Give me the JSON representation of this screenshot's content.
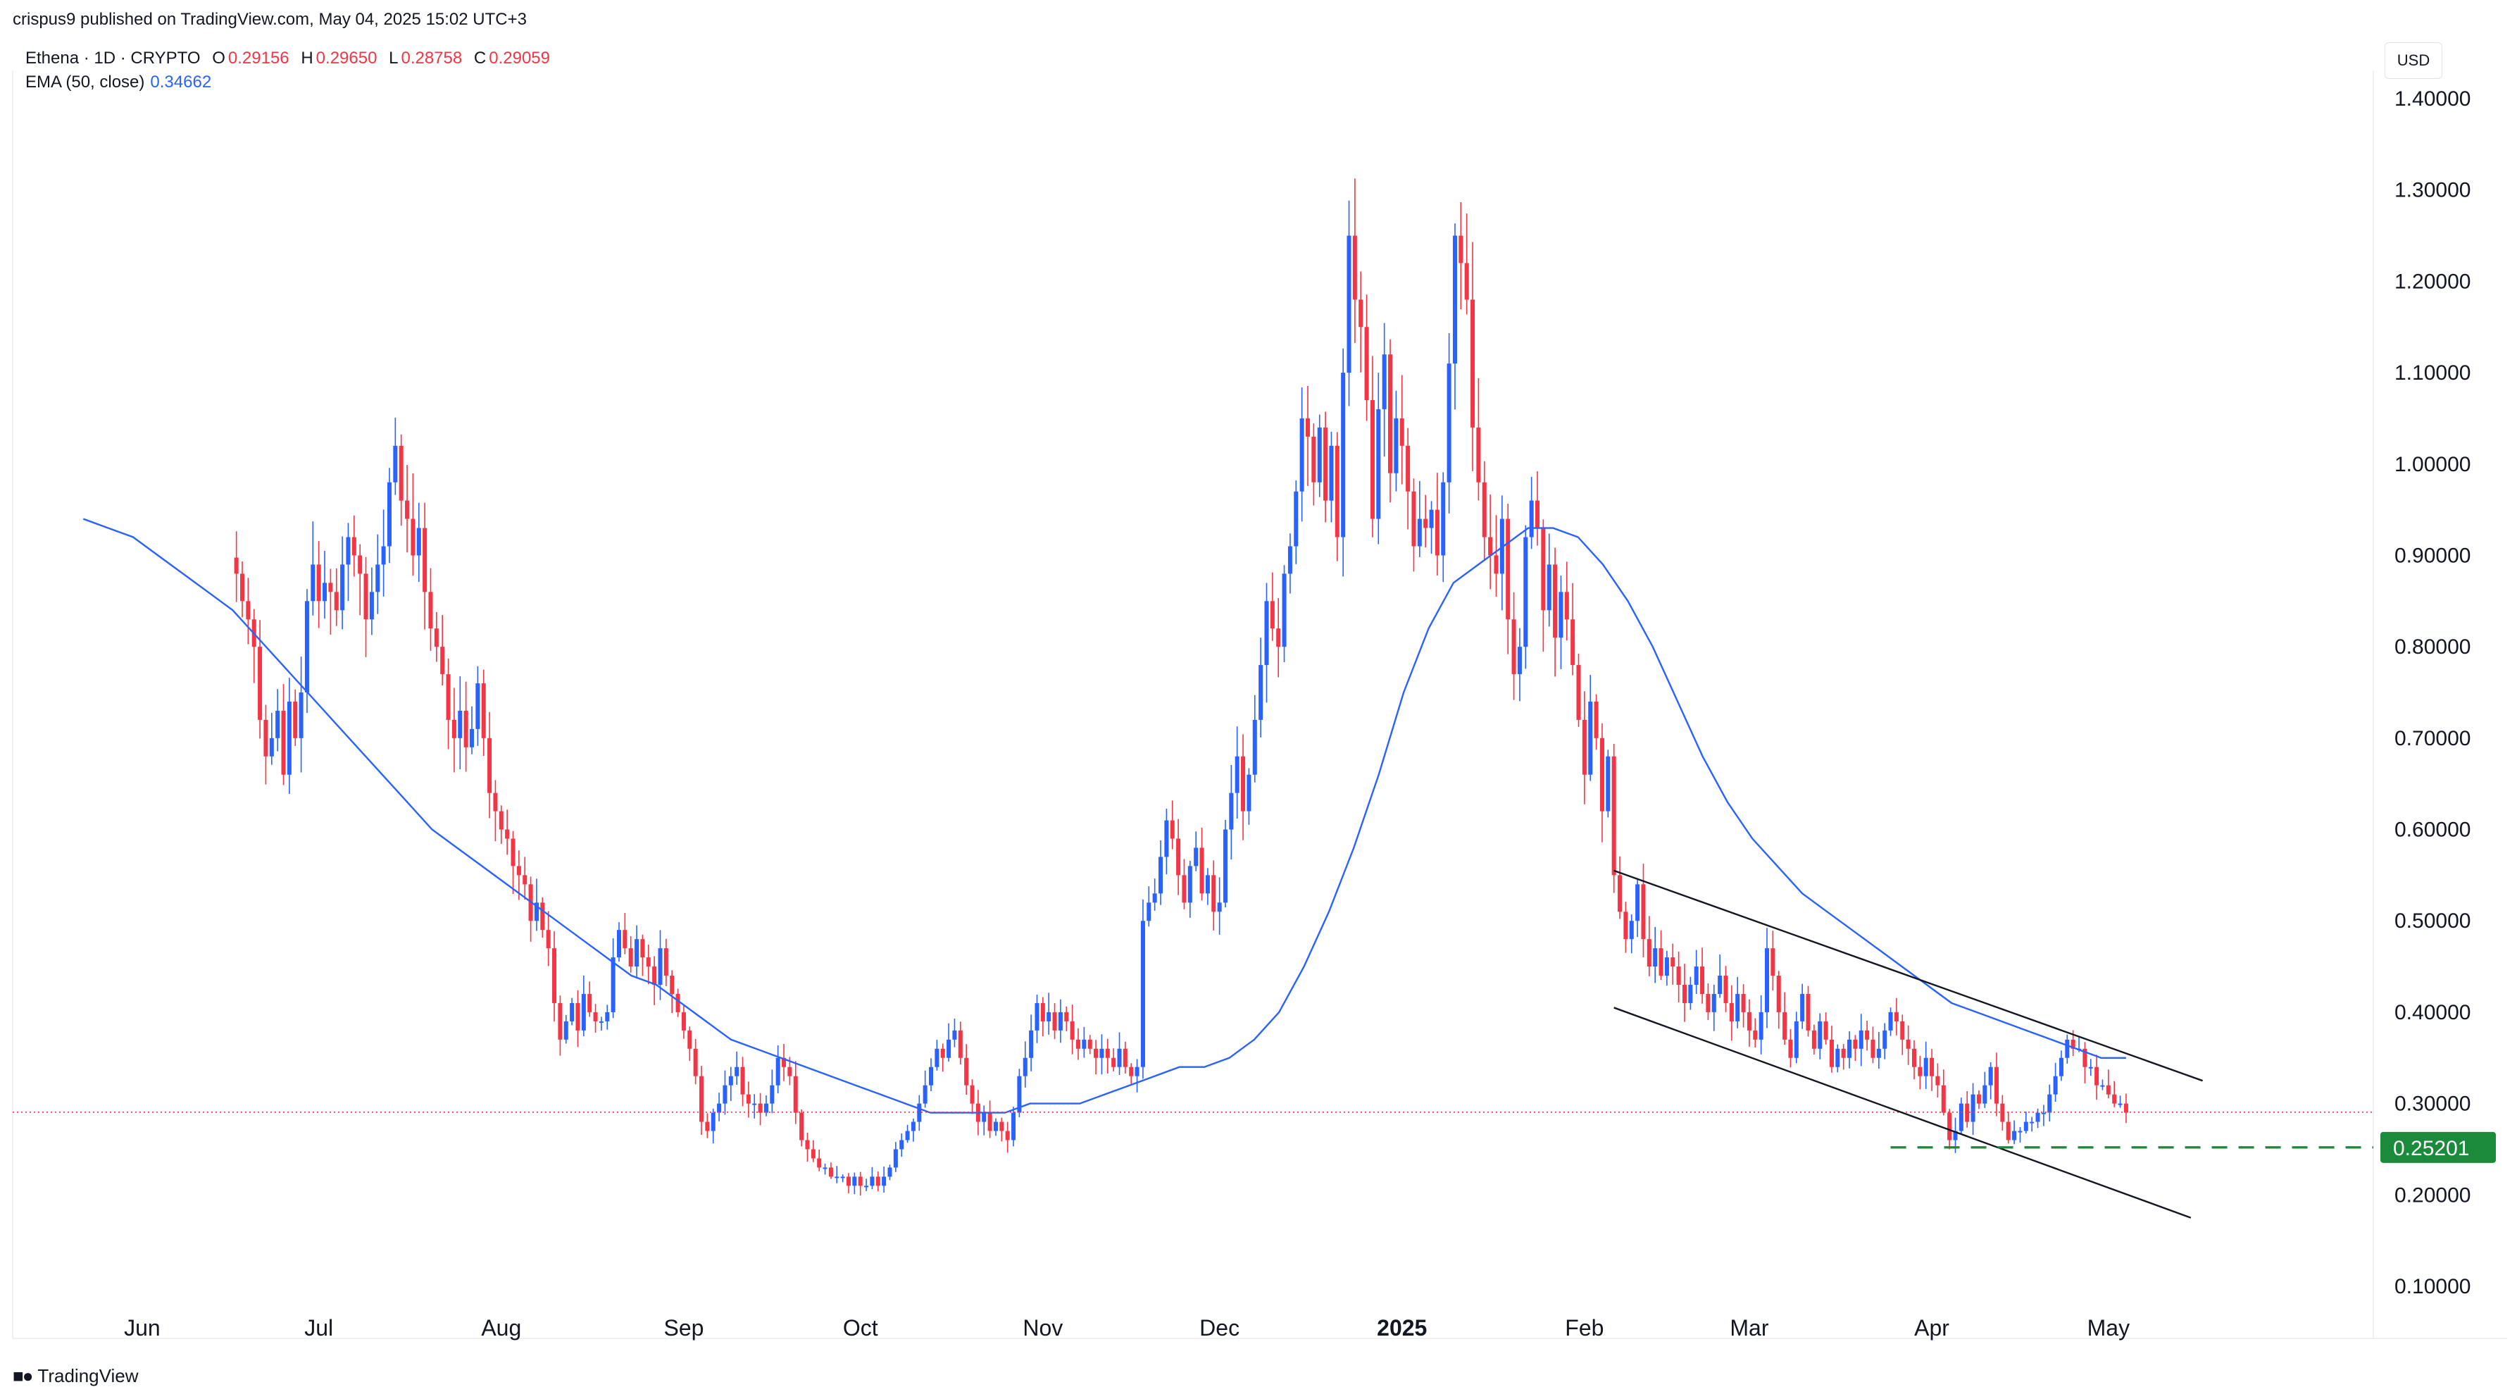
{
  "publish_line": "crispus9 published on TradingView.com, May 04, 2025 15:02 UTC+3",
  "legend": {
    "symbol": "Ethena · 1D · CRYPTO",
    "open_label": "O",
    "open": "0.29156",
    "high_label": "H",
    "high": "0.29650",
    "low_label": "L",
    "low": "0.28758",
    "close_label": "C",
    "close": "0.29059",
    "ema_label": "EMA (50, close)",
    "ema_value": "0.34662"
  },
  "currency": "USD",
  "footer_brand": "TradingView",
  "colors": {
    "up": "#2962ff",
    "down": "#f23645",
    "ema": "#2962ff",
    "support": "#1b8a3a",
    "price_line": "#f23645",
    "axis_text": "#131722"
  },
  "chart_data": {
    "type": "candlestick",
    "ylim": [
      0.05,
      1.45
    ],
    "y_ticks": [
      "1.40000",
      "1.30000",
      "1.20000",
      "1.10000",
      "1.00000",
      "0.90000",
      "0.80000",
      "0.70000",
      "0.60000",
      "0.50000",
      "0.40000",
      "0.30000",
      "0.20000",
      "0.10000"
    ],
    "y_tick_values": [
      1.4,
      1.3,
      1.2,
      1.1,
      1.0,
      0.9,
      0.8,
      0.7,
      0.6,
      0.5,
      0.4,
      0.3,
      0.2,
      0.1
    ],
    "x_ticks": [
      {
        "label": "Jun",
        "date": "2024-06-01"
      },
      {
        "label": "Jul",
        "date": "2024-07-01"
      },
      {
        "label": "Aug",
        "date": "2024-08-01"
      },
      {
        "label": "Sep",
        "date": "2024-09-01"
      },
      {
        "label": "Oct",
        "date": "2024-10-01"
      },
      {
        "label": "Nov",
        "date": "2024-11-01"
      },
      {
        "label": "Dec",
        "date": "2024-12-01"
      },
      {
        "label": "2025",
        "date": "2025-01-01",
        "bold": true
      },
      {
        "label": "Feb",
        "date": "2025-02-01"
      },
      {
        "label": "Mar",
        "date": "2025-03-01"
      },
      {
        "label": "Apr",
        "date": "2025-04-01"
      },
      {
        "label": "May",
        "date": "2025-05-01"
      }
    ],
    "x_range": [
      "2024-05-10",
      "2025-06-15"
    ],
    "series": [
      {
        "kind": "candles",
        "last_date": "2025-05-04",
        "closes": [
          0.88,
          0.85,
          0.83,
          0.8,
          0.72,
          0.68,
          0.7,
          0.73,
          0.66,
          0.74,
          0.7,
          0.75,
          0.85,
          0.89,
          0.85,
          0.87,
          0.86,
          0.84,
          0.89,
          0.92,
          0.9,
          0.88,
          0.83,
          0.86,
          0.89,
          0.91,
          0.98,
          1.02,
          0.96,
          0.94,
          0.9,
          0.93,
          0.86,
          0.82,
          0.8,
          0.77,
          0.72,
          0.7,
          0.73,
          0.69,
          0.71,
          0.76,
          0.7,
          0.64,
          0.62,
          0.6,
          0.59,
          0.56,
          0.55,
          0.54,
          0.5,
          0.52,
          0.49,
          0.47,
          0.41,
          0.37,
          0.39,
          0.41,
          0.38,
          0.42,
          0.4,
          0.39,
          0.39,
          0.4,
          0.46,
          0.49,
          0.47,
          0.45,
          0.48,
          0.46,
          0.45,
          0.43,
          0.47,
          0.44,
          0.42,
          0.4,
          0.38,
          0.36,
          0.33,
          0.28,
          0.27,
          0.29,
          0.3,
          0.32,
          0.33,
          0.34,
          0.31,
          0.3,
          0.3,
          0.29,
          0.3,
          0.32,
          0.35,
          0.34,
          0.33,
          0.29,
          0.26,
          0.25,
          0.24,
          0.23,
          0.23,
          0.22,
          0.22,
          0.22,
          0.21,
          0.22,
          0.21,
          0.21,
          0.22,
          0.21,
          0.22,
          0.23,
          0.25,
          0.26,
          0.27,
          0.28,
          0.3,
          0.32,
          0.34,
          0.36,
          0.35,
          0.37,
          0.38,
          0.35,
          0.32,
          0.3,
          0.28,
          0.29,
          0.27,
          0.28,
          0.27,
          0.26,
          0.29,
          0.33,
          0.35,
          0.38,
          0.41,
          0.39,
          0.4,
          0.38,
          0.4,
          0.39,
          0.37,
          0.36,
          0.37,
          0.36,
          0.35,
          0.36,
          0.35,
          0.34,
          0.36,
          0.34,
          0.33,
          0.34,
          0.5,
          0.52,
          0.53,
          0.57,
          0.61,
          0.59,
          0.55,
          0.52,
          0.56,
          0.58,
          0.53,
          0.55,
          0.51,
          0.52,
          0.6,
          0.64,
          0.68,
          0.62,
          0.66,
          0.72,
          0.78,
          0.85,
          0.82,
          0.8,
          0.88,
          0.91,
          0.97,
          1.05,
          1.03,
          0.98,
          1.04,
          0.96,
          1.02,
          0.92,
          1.1,
          1.25,
          1.18,
          1.15,
          1.07,
          0.94,
          1.06,
          1.12,
          0.99,
          1.05,
          1.02,
          0.97,
          0.91,
          0.94,
          0.93,
          0.95,
          0.9,
          0.98,
          1.11,
          1.25,
          1.22,
          1.18,
          1.04,
          0.98,
          0.92,
          0.9,
          0.88,
          0.94,
          0.83,
          0.77,
          0.8,
          0.92,
          0.96,
          0.93,
          0.84,
          0.89,
          0.81,
          0.86,
          0.83,
          0.78,
          0.72,
          0.66,
          0.74,
          0.7,
          0.62,
          0.68,
          0.55,
          0.51,
          0.48,
          0.5,
          0.54,
          0.48,
          0.45,
          0.47,
          0.44,
          0.46,
          0.45,
          0.43,
          0.41,
          0.43,
          0.45,
          0.42,
          0.4,
          0.42,
          0.44,
          0.41,
          0.39,
          0.42,
          0.4,
          0.38,
          0.37,
          0.4,
          0.47,
          0.44,
          0.4,
          0.37,
          0.35,
          0.39,
          0.42,
          0.38,
          0.36,
          0.39,
          0.37,
          0.34,
          0.36,
          0.35,
          0.37,
          0.36,
          0.38,
          0.37,
          0.35,
          0.36,
          0.38,
          0.4,
          0.39,
          0.37,
          0.36,
          0.34,
          0.33,
          0.35,
          0.33,
          0.32,
          0.29,
          0.26,
          0.27,
          0.3,
          0.28,
          0.31,
          0.3,
          0.32,
          0.34,
          0.3,
          0.28,
          0.26,
          0.27,
          0.27,
          0.28,
          0.28,
          0.29,
          0.29,
          0.31,
          0.33,
          0.35,
          0.37,
          0.36,
          0.36,
          0.34,
          0.34,
          0.32,
          0.32,
          0.31,
          0.3,
          0.3,
          0.29
        ]
      },
      {
        "kind": "line",
        "name": "EMA (50, close)",
        "start_date": "2024-05-22",
        "values": [
          0.94,
          0.93,
          0.92,
          0.9,
          0.88,
          0.86,
          0.84,
          0.81,
          0.78,
          0.75,
          0.72,
          0.69,
          0.66,
          0.63,
          0.6,
          0.58,
          0.56,
          0.54,
          0.52,
          0.5,
          0.48,
          0.46,
          0.44,
          0.43,
          0.41,
          0.39,
          0.37,
          0.36,
          0.35,
          0.34,
          0.33,
          0.32,
          0.31,
          0.3,
          0.29,
          0.29,
          0.29,
          0.29,
          0.3,
          0.3,
          0.3,
          0.31,
          0.32,
          0.33,
          0.34,
          0.34,
          0.35,
          0.37,
          0.4,
          0.45,
          0.51,
          0.58,
          0.66,
          0.75,
          0.82,
          0.87,
          0.89,
          0.91,
          0.93,
          0.93,
          0.92,
          0.89,
          0.85,
          0.8,
          0.74,
          0.68,
          0.63,
          0.59,
          0.56,
          0.53,
          0.51,
          0.49,
          0.47,
          0.45,
          0.43,
          0.41,
          0.4,
          0.39,
          0.38,
          0.37,
          0.36,
          0.35,
          0.35
        ]
      }
    ],
    "support_level": {
      "value": 0.25201,
      "label": "0.25201",
      "from_date": "2025-03-25"
    },
    "last_price": 0.29059,
    "channel": [
      {
        "from": [
          "2025-02-06",
          0.555
        ],
        "to": [
          "2025-05-17",
          0.325
        ]
      },
      {
        "from": [
          "2025-02-06",
          0.405
        ],
        "to": [
          "2025-05-15",
          0.175
        ]
      }
    ]
  }
}
